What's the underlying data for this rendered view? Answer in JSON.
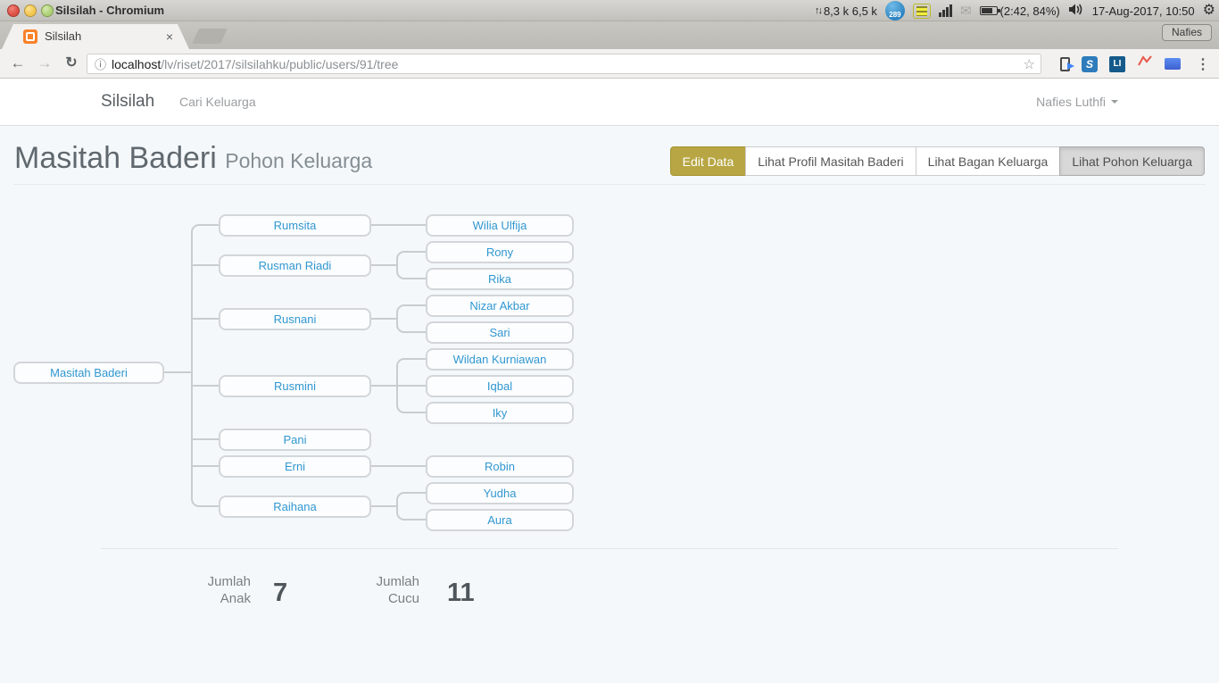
{
  "system_bar": {
    "window_title": "Silsilah - Chromium",
    "network_traffic": "8,3 k 6,5 k",
    "indicator_badge": "289",
    "battery_status": "(2:42, 84%)",
    "clock": "17-Aug-2017, 10:50"
  },
  "browser": {
    "tab_title": "Silsilah",
    "close_tab_glyph": "×",
    "profile_label": "Nafies",
    "url_host": "localhost",
    "url_path": "/lv/riset/2017/silsilahku/public/users/91/tree",
    "back_glyph": "←",
    "forward_glyph": "→",
    "reload_glyph": "↻",
    "info_glyph": "ⓘ",
    "star_glyph": "☆",
    "menu_glyph": "⋮",
    "ext_s_label": "S",
    "ext_li_label": "LI"
  },
  "navbar": {
    "brand": "Silsilah",
    "links": [
      {
        "label": "Cari Keluarga"
      }
    ],
    "user_menu_label": "Nafies Luthfi"
  },
  "page": {
    "title": "Masitah Baderi",
    "subtitle": "Pohon Keluarga",
    "actions": [
      {
        "label": "Edit Data",
        "style": "olive"
      },
      {
        "label": "Lihat Profil Masitah Baderi",
        "style": "default"
      },
      {
        "label": "Lihat Bagan Keluarga",
        "style": "default"
      },
      {
        "label": "Lihat Pohon Keluarga",
        "style": "active"
      }
    ]
  },
  "chart_data": {
    "type": "tree",
    "title": "Pohon Keluarga Masitah Baderi",
    "root": {
      "name": "Masitah Baderi",
      "children": [
        {
          "name": "Rumsita",
          "children": [
            {
              "name": "Wilia Ulfija"
            }
          ]
        },
        {
          "name": "Rusman Riadi",
          "children": [
            {
              "name": "Rony"
            },
            {
              "name": "Rika"
            }
          ]
        },
        {
          "name": "Rusnani",
          "children": [
            {
              "name": "Nizar Akbar"
            },
            {
              "name": "Sari"
            }
          ]
        },
        {
          "name": "Rusmini",
          "children": [
            {
              "name": "Wildan Kurniawan"
            },
            {
              "name": "Iqbal"
            },
            {
              "name": "Iky"
            }
          ]
        },
        {
          "name": "Pani",
          "children": []
        },
        {
          "name": "Erni",
          "children": [
            {
              "name": "Robin"
            }
          ]
        },
        {
          "name": "Raihana",
          "children": [
            {
              "name": "Yudha"
            },
            {
              "name": "Aura"
            }
          ]
        }
      ]
    }
  },
  "stats": {
    "children_label": "Jumlah Anak",
    "children_count": "7",
    "grandchildren_label": "Jumlah Cucu",
    "grandchildren_count": "11"
  },
  "colors": {
    "accent_blue": "#3097d1",
    "action_olive": "#b7a643",
    "page_bg": "#f5f8fa",
    "connector": "#c8cdd1"
  }
}
